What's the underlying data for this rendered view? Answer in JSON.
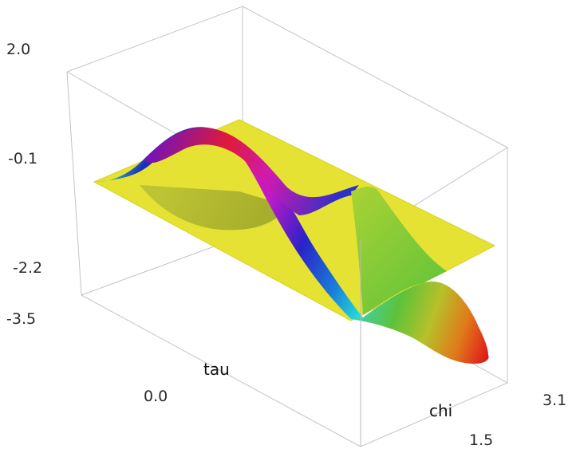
{
  "chart_data": {
    "type": "surface",
    "title": "",
    "x_axis": {
      "label": "chi",
      "ticks": [
        "1.5",
        "3.1"
      ]
    },
    "y_axis": {
      "label": "tau",
      "ticks": [
        "0.0"
      ]
    },
    "z_axis": {
      "label": "",
      "ticks": [
        "2.0",
        "-0.1",
        "-2.2",
        "-3.5"
      ]
    },
    "surfaces": [
      {
        "name": "",
        "kind": "plane",
        "color": "#e6e233"
      },
      {
        "name": "",
        "kind": "oscillating surface",
        "coloring": "rainbow by height"
      }
    ],
    "box": true,
    "grid": false
  }
}
